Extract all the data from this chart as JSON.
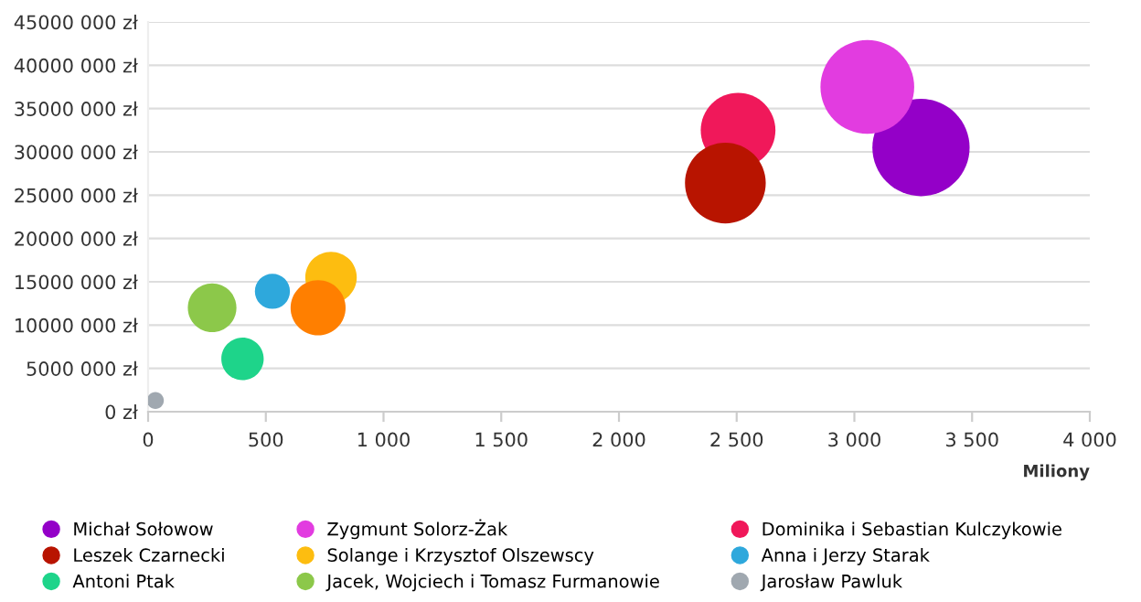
{
  "chart_data": {
    "type": "bubble",
    "xlabel": "Miliony",
    "xlim": [
      0,
      4000
    ],
    "xticks": [
      0,
      500,
      {
        "value": 1000,
        "label": "1 000"
      },
      {
        "value": 1500,
        "label": "1 500"
      },
      {
        "value": 2000,
        "label": "2 000"
      },
      {
        "value": 2500,
        "label": "2 500"
      },
      {
        "value": 3000,
        "label": "3 000"
      },
      {
        "value": 3500,
        "label": "3 500"
      },
      {
        "value": 4000,
        "label": "4 000"
      }
    ],
    "ylim": [
      0,
      45000000
    ],
    "yticks": [
      {
        "value": 0,
        "label": "0 zł"
      },
      {
        "value": 5000000,
        "label": "5000 000 zł"
      },
      {
        "value": 10000000,
        "label": "10000 000 zł"
      },
      {
        "value": 15000000,
        "label": "15000 000 zł"
      },
      {
        "value": 20000000,
        "label": "20000 000 zł"
      },
      {
        "value": 25000000,
        "label": "25000 000 zł"
      },
      {
        "value": 30000000,
        "label": "30000 000 zł"
      },
      {
        "value": 35000000,
        "label": "35000 000 zł"
      },
      {
        "value": 40000000,
        "label": "40000 000 zł"
      },
      {
        "value": 45000000,
        "label": "45000 000 zł"
      }
    ],
    "grid": "y",
    "legend": "bottom",
    "marker": "circle",
    "series": [
      {
        "name": "Michał Sołowow",
        "color": "#9400c8",
        "x": [
          3283
        ],
        "values": [
          30500000
        ],
        "sizes": [
          1
        ]
      },
      {
        "name": "Zygmunt Solorz-Żak",
        "color": "#e23ce0",
        "x": [
          3055
        ],
        "values": [
          37500000
        ],
        "sizes": [
          0.93
        ]
      },
      {
        "name": "Dominika i Sebastian Kulczykowie",
        "color": "#f0185a",
        "x": [
          2506
        ],
        "values": [
          32500000
        ],
        "sizes": [
          0.59
        ]
      },
      {
        "name": "Leszek Czarnecki",
        "color": "#b81400",
        "x": [
          2452
        ],
        "values": [
          26400000
        ],
        "sizes": [
          0.69
        ]
      },
      {
        "name": "Solange i Krzysztof Olszewscy",
        "color": "#fdbd10",
        "x": [
          777
        ],
        "values": [
          15500000
        ],
        "sizes": [
          0.28
        ]
      },
      {
        "name": "Anna i Jerzy Starak",
        "color": "#2ea8dc",
        "x": [
          528
        ],
        "values": [
          13900000
        ],
        "sizes": [
          0.13
        ]
      },
      {
        "name": "Antoni Ptak",
        "color": "#1ed48a",
        "x": [
          401
        ],
        "values": [
          6100000
        ],
        "sizes": [
          0.19
        ]
      },
      {
        "name": "Jacek, Wojciech i Tomasz Furmanowie",
        "color": "#8cc84a",
        "x": [
          272
        ],
        "values": [
          12000000
        ],
        "sizes": [
          0.25
        ]
      },
      {
        "name": "Jarosław Pawluk",
        "color": "#a0a8b0",
        "x": [
          31
        ],
        "values": [
          1300000
        ],
        "sizes": [
          0.03
        ]
      },
      {
        "color": "#ff7f00",
        "x": [
          722
        ],
        "values": [
          12000000
        ],
        "sizes": [
          0.32
        ]
      }
    ]
  }
}
